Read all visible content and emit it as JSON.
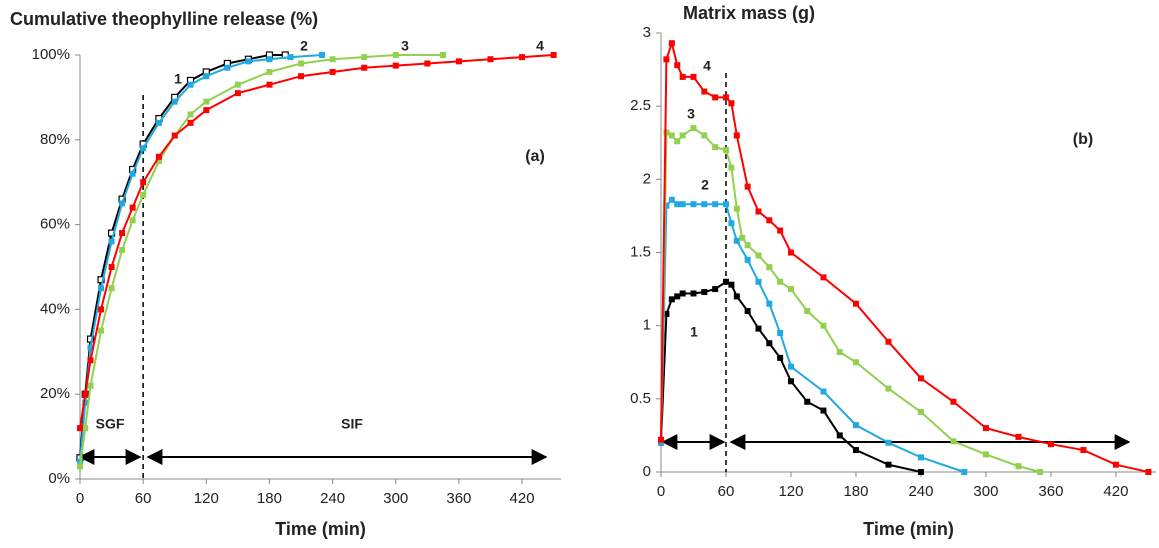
{
  "chart_data": [
    {
      "type": "line",
      "title": "Cumulative theophylline release (%)",
      "xlabel": "Time (min)",
      "xlim": [
        0,
        457
      ],
      "xticks": [
        0,
        60,
        120,
        180,
        240,
        300,
        360,
        420
      ],
      "ylim": [
        0,
        100
      ],
      "yticks": [
        {
          "value": 0,
          "label": "0%"
        },
        {
          "value": 20,
          "label": "20%"
        },
        {
          "value": 40,
          "label": "40%"
        },
        {
          "value": 60,
          "label": "60%"
        },
        {
          "value": 80,
          "label": "80%"
        },
        {
          "value": 100,
          "label": "100%"
        }
      ],
      "grid": false,
      "vline": 60,
      "annotations": [
        "(a)",
        "SGF",
        "SIF"
      ],
      "series": [
        {
          "name": "1",
          "color": "#000000",
          "marker": "open-square",
          "x": [
            0,
            5,
            10,
            20,
            30,
            40,
            50,
            60,
            75,
            90,
            105,
            120,
            140,
            160,
            180,
            195
          ],
          "values": [
            5,
            20,
            33,
            47,
            58,
            66,
            73,
            79,
            85,
            90,
            94,
            96,
            98,
            99,
            100,
            100
          ]
        },
        {
          "name": "2",
          "color": "#21a9e1",
          "marker": "square",
          "x": [
            0,
            5,
            10,
            20,
            30,
            40,
            50,
            60,
            75,
            90,
            105,
            120,
            140,
            160,
            180,
            200,
            230
          ],
          "values": [
            4,
            18,
            31,
            45,
            56,
            65,
            72,
            78,
            84,
            89,
            93,
            95,
            97,
            98.5,
            99,
            99.5,
            100
          ]
        },
        {
          "name": "3",
          "color": "#92d050",
          "marker": "square",
          "x": [
            0,
            5,
            10,
            20,
            30,
            40,
            50,
            60,
            75,
            90,
            105,
            120,
            150,
            180,
            210,
            240,
            270,
            300,
            345
          ],
          "values": [
            3,
            12,
            22,
            35,
            45,
            54,
            61,
            67,
            75,
            81,
            86,
            89,
            93,
            96,
            98,
            99,
            99.5,
            100,
            100
          ]
        },
        {
          "name": "4",
          "color": "#ff0000",
          "marker": "square",
          "x": [
            0,
            5,
            10,
            20,
            30,
            40,
            50,
            60,
            75,
            90,
            105,
            120,
            150,
            180,
            210,
            240,
            270,
            300,
            330,
            360,
            390,
            420,
            450
          ],
          "values": [
            12,
            20,
            28,
            40,
            50,
            58,
            64,
            70,
            76,
            81,
            84,
            87,
            91,
            93,
            95,
            96,
            97,
            97.5,
            98,
            98.5,
            99,
            99.5,
            100
          ]
        }
      ]
    },
    {
      "type": "line",
      "title": "Matrix mass (g)",
      "xlabel": "Time (min)",
      "xlim": [
        0,
        457
      ],
      "xticks": [
        0,
        60,
        120,
        180,
        240,
        300,
        360,
        420
      ],
      "ylim": [
        0,
        3
      ],
      "yticks": [
        0,
        0.5,
        1,
        1.5,
        2,
        2.5,
        3
      ],
      "grid": false,
      "vline": 60,
      "annotations": [
        "(b)"
      ],
      "series": [
        {
          "name": "1",
          "color": "#000000",
          "marker": "square",
          "x": [
            0,
            5,
            10,
            15,
            20,
            30,
            40,
            50,
            60,
            65,
            70,
            80,
            90,
            100,
            110,
            120,
            135,
            150,
            165,
            180,
            210,
            240
          ],
          "values": [
            0.2,
            1.08,
            1.18,
            1.2,
            1.22,
            1.22,
            1.23,
            1.25,
            1.3,
            1.28,
            1.2,
            1.1,
            0.98,
            0.88,
            0.78,
            0.62,
            0.48,
            0.42,
            0.25,
            0.15,
            0.05,
            0
          ]
        },
        {
          "name": "2",
          "color": "#21a9e1",
          "marker": "square",
          "x": [
            0,
            5,
            10,
            15,
            20,
            30,
            40,
            50,
            60,
            65,
            70,
            80,
            90,
            100,
            110,
            120,
            150,
            180,
            210,
            240,
            280
          ],
          "values": [
            0.2,
            1.82,
            1.86,
            1.83,
            1.83,
            1.83,
            1.83,
            1.83,
            1.83,
            1.7,
            1.58,
            1.45,
            1.3,
            1.15,
            0.95,
            0.72,
            0.55,
            0.32,
            0.2,
            0.1,
            0
          ]
        },
        {
          "name": "3",
          "color": "#92d050",
          "marker": "square",
          "x": [
            0,
            5,
            10,
            15,
            20,
            30,
            40,
            50,
            60,
            65,
            70,
            75,
            80,
            90,
            100,
            110,
            120,
            135,
            150,
            165,
            180,
            210,
            240,
            270,
            300,
            330,
            350
          ],
          "values": [
            0.22,
            2.32,
            2.3,
            2.26,
            2.3,
            2.35,
            2.3,
            2.22,
            2.2,
            2.08,
            1.8,
            1.6,
            1.55,
            1.48,
            1.4,
            1.3,
            1.25,
            1.1,
            1.0,
            0.82,
            0.75,
            0.57,
            0.41,
            0.21,
            0.12,
            0.04,
            0
          ]
        },
        {
          "name": "4",
          "color": "#ff0000",
          "marker": "square",
          "x": [
            0,
            5,
            10,
            15,
            20,
            30,
            40,
            50,
            60,
            65,
            70,
            80,
            90,
            100,
            110,
            120,
            150,
            180,
            210,
            240,
            270,
            300,
            330,
            360,
            390,
            420,
            450
          ],
          "values": [
            0.22,
            2.82,
            2.93,
            2.78,
            2.7,
            2.7,
            2.6,
            2.56,
            2.56,
            2.52,
            2.3,
            1.95,
            1.78,
            1.72,
            1.65,
            1.5,
            1.33,
            1.15,
            0.89,
            0.64,
            0.48,
            0.3,
            0.24,
            0.19,
            0.15,
            0.05,
            0
          ]
        }
      ]
    }
  ]
}
